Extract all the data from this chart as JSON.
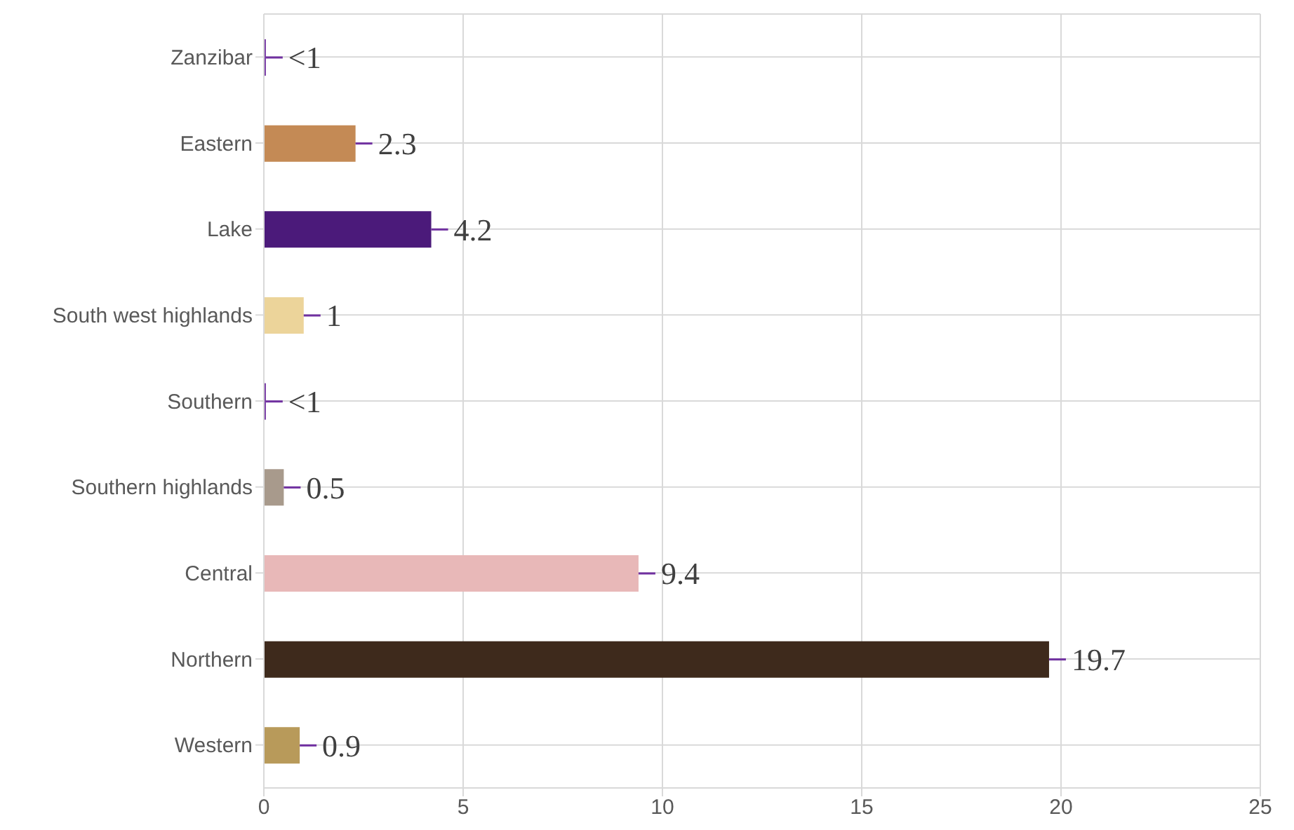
{
  "chart_data": {
    "type": "bar",
    "orientation": "horizontal",
    "categories": [
      "Zanzibar",
      "Eastern",
      "Lake",
      "South west highlands",
      "Southern",
      "Southern highlands",
      "Central",
      "Northern",
      "Western"
    ],
    "values": [
      0.05,
      2.3,
      4.2,
      1,
      0.05,
      0.5,
      9.4,
      19.7,
      0.9
    ],
    "value_labels": [
      "<1",
      "2.3",
      "4.2",
      "1",
      "<1",
      "0.5",
      "9.4",
      "19.7",
      "0.9"
    ],
    "colors": [
      "#7030a0",
      "#c48a55",
      "#4b1a7a",
      "#ecd49a",
      "#7030a0",
      "#a89a8c",
      "#e8b8b8",
      "#3e2a1c",
      "#b89a5a"
    ],
    "xlim": [
      0,
      25
    ],
    "xticks": [
      0,
      5,
      10,
      15,
      20,
      25
    ],
    "grid": true
  }
}
